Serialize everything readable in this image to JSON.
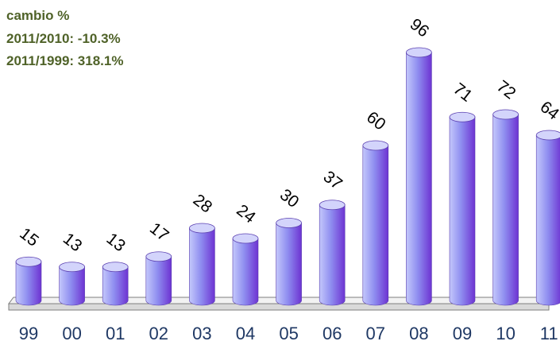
{
  "annotations": {
    "line1": "cambio %",
    "line2": "2011/2010: -10.3%",
    "line3": "2011/1999: 318.1%"
  },
  "colors": {
    "bar_light": "#c4c8fb",
    "bar_mid": "#8f8ef0",
    "bar_dark": "#6d33d2",
    "bar_top": "#d3d4fb",
    "annotation": "#4f6228",
    "tick_label": "#1f3864",
    "floor": "#f2f2f2",
    "floor_edge": "#7f7f7f"
  },
  "chart_data": {
    "type": "bar",
    "categories": [
      "99",
      "00",
      "01",
      "02",
      "03",
      "04",
      "05",
      "06",
      "07",
      "08",
      "09",
      "10",
      "11"
    ],
    "values": [
      15,
      13,
      13,
      17,
      28,
      24,
      30,
      37,
      60,
      96,
      71,
      72,
      64
    ],
    "title": "",
    "xlabel": "",
    "ylabel": "",
    "ylim": [
      0,
      100
    ],
    "grid": false,
    "legend": "none",
    "bar_shape": "cylinder",
    "data_labels": "rotated above bars"
  }
}
